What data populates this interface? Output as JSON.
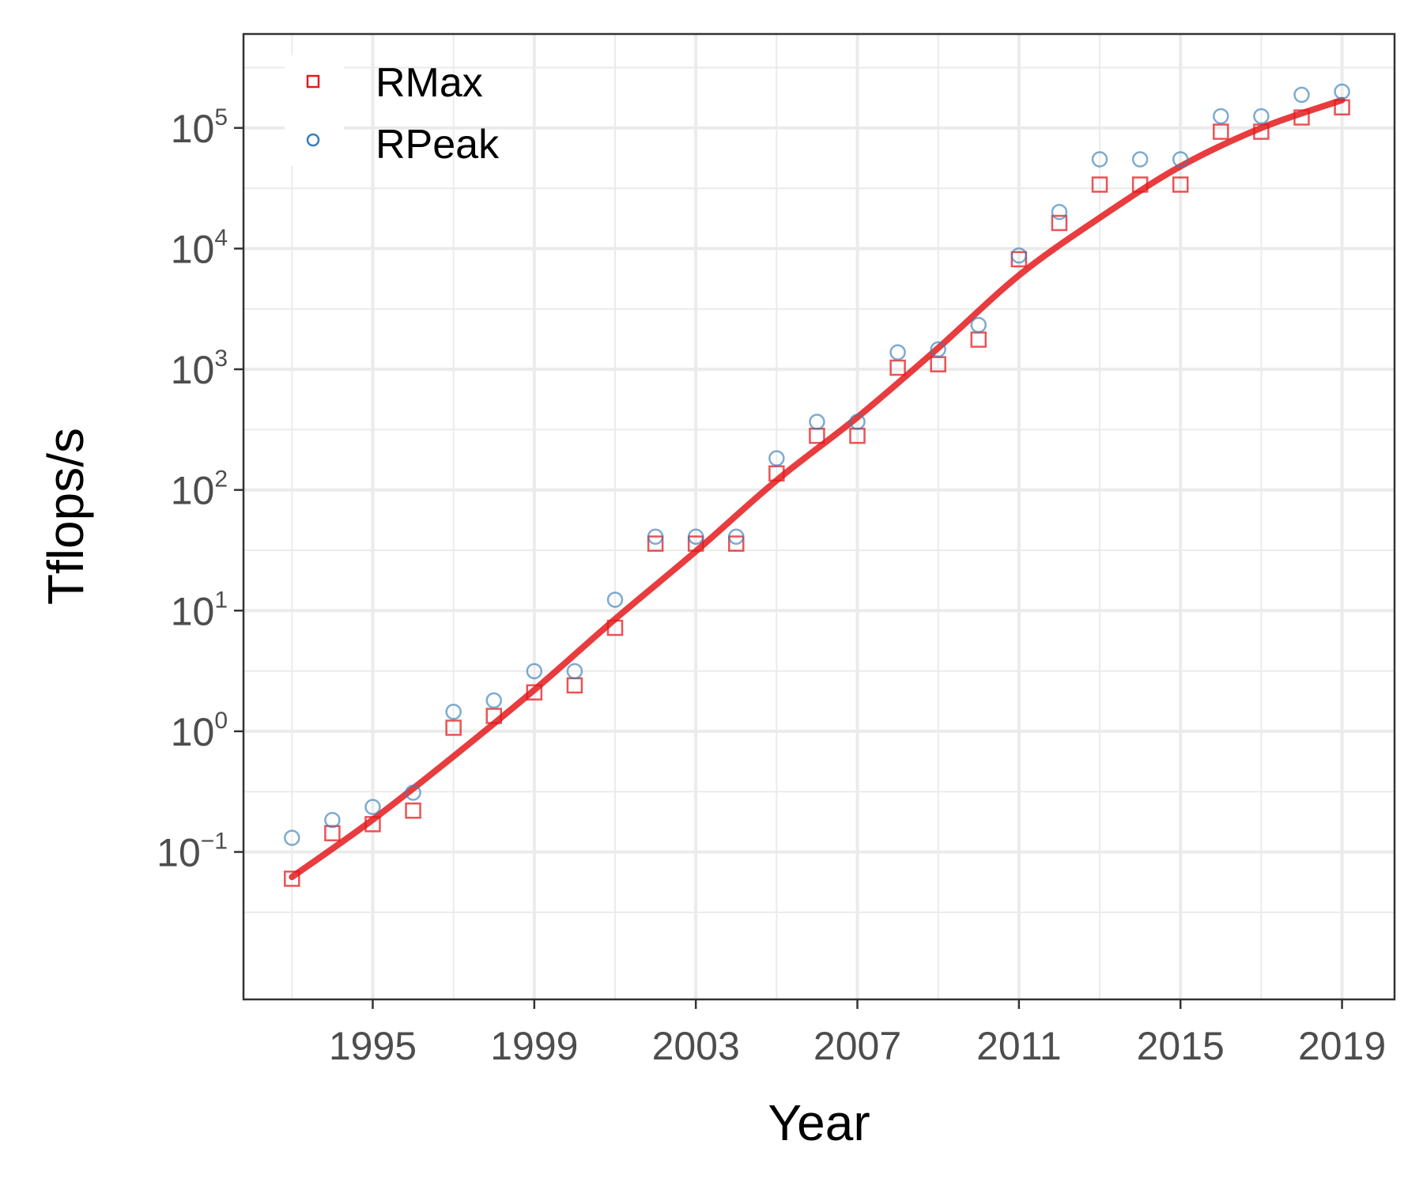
{
  "chart_data": {
    "type": "scatter",
    "xlabel": "Year",
    "ylabel": "Tflops/s",
    "y_scale": "log10",
    "xlim": [
      1991.8,
      2020.3
    ],
    "ylim": [
      0.006,
      600000
    ],
    "x_ticks": [
      {
        "value": 1995,
        "label": "1995"
      },
      {
        "value": 1999,
        "label": "1999"
      },
      {
        "value": 2003,
        "label": "2003"
      },
      {
        "value": 2007,
        "label": "2007"
      },
      {
        "value": 2011,
        "label": "2011"
      },
      {
        "value": 2015,
        "label": "2015"
      },
      {
        "value": 2019,
        "label": "2019"
      }
    ],
    "y_ticks": [
      {
        "value": 0.1,
        "base": "10",
        "exp": "−1"
      },
      {
        "value": 1,
        "base": "10",
        "exp": "0"
      },
      {
        "value": 10,
        "base": "10",
        "exp": "1"
      },
      {
        "value": 100,
        "base": "10",
        "exp": "2"
      },
      {
        "value": 1000,
        "base": "10",
        "exp": "3"
      },
      {
        "value": 10000,
        "base": "10",
        "exp": "4"
      },
      {
        "value": 100000,
        "base": "10",
        "exp": "5"
      }
    ],
    "grid": true,
    "legend_position": "top-left",
    "series": [
      {
        "name": "RMax",
        "marker": "square",
        "color": "#e41a1c",
        "x": [
          1993,
          1994,
          1995,
          1996,
          1997,
          1998,
          1999,
          2000,
          2001,
          2002,
          2003,
          2004,
          2005,
          2006,
          2007,
          2008,
          2009,
          2010,
          2011,
          2012,
          2013,
          2014,
          2015,
          2016,
          2017,
          2018,
          2019
        ],
        "y": [
          0.06,
          0.143,
          0.17,
          0.22,
          1.07,
          1.34,
          2.1,
          2.4,
          7.2,
          35.9,
          35.9,
          35.9,
          137,
          281,
          281,
          1030,
          1100,
          1760,
          8160,
          16300,
          33900,
          33900,
          33900,
          93000,
          93000,
          122000,
          148000
        ]
      },
      {
        "name": "RPeak",
        "marker": "circle",
        "color": "#377eb8",
        "x": [
          1993,
          1994,
          1995,
          1996,
          1997,
          1998,
          1999,
          2000,
          2001,
          2002,
          2003,
          2004,
          2005,
          2006,
          2007,
          2008,
          2009,
          2010,
          2011,
          2012,
          2013,
          2014,
          2015,
          2016,
          2017,
          2018,
          2019
        ],
        "y": [
          0.131,
          0.184,
          0.236,
          0.31,
          1.45,
          1.8,
          3.15,
          3.15,
          12.3,
          41,
          41,
          41,
          183,
          367,
          367,
          1380,
          1460,
          2330,
          8770,
          20100,
          54900,
          54900,
          54900,
          125000,
          125000,
          188000,
          200000
        ]
      }
    ],
    "trend_line": {
      "color": "#e41a1c",
      "x": [
        1993,
        1995,
        1997,
        1999,
        2001,
        2003,
        2005,
        2007,
        2009,
        2011,
        2013,
        2015,
        2017,
        2019
      ],
      "y": [
        0.062,
        0.185,
        0.62,
        2.2,
        8.5,
        31,
        120,
        400,
        1500,
        6000,
        18000,
        48000,
        100000,
        170000
      ]
    }
  }
}
